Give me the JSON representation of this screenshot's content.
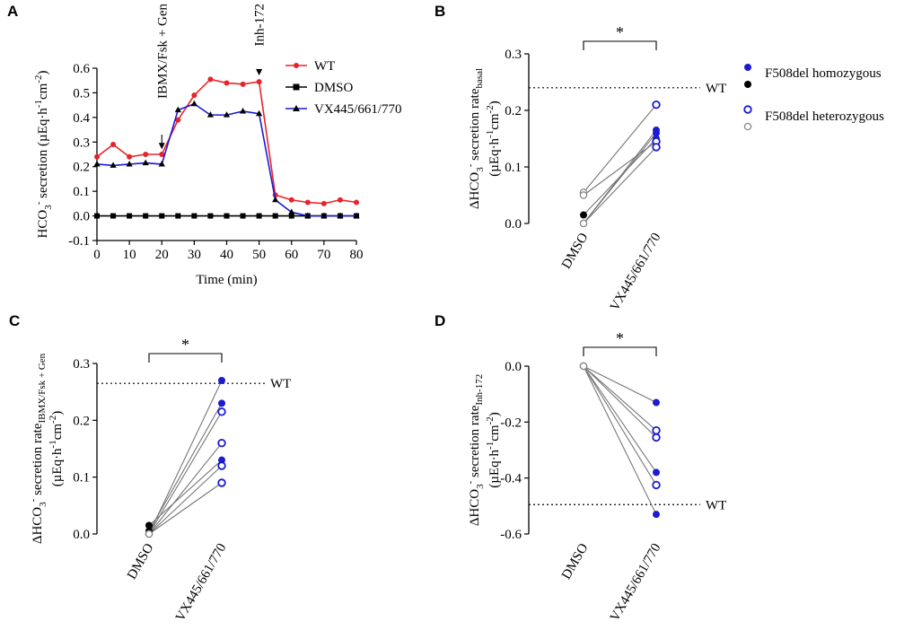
{
  "panels": [
    {
      "id": "A",
      "letter": "A",
      "chart_data": {
        "type": "line",
        "xlabel": "Time (min)",
        "ylabel_parts": [
          "HCO",
          "3",
          "-",
          " secretion (µEq·h",
          "-1",
          "cm",
          "-2",
          ")"
        ],
        "xlim": [
          0,
          80
        ],
        "ylim": [
          -0.1,
          0.6
        ],
        "xticks": [
          0,
          10,
          20,
          30,
          40,
          50,
          60,
          70,
          80
        ],
        "yticks": [
          -0.1,
          0.0,
          0.1,
          0.2,
          0.3,
          0.4,
          0.5,
          0.6
        ],
        "ytick_labels": [
          "-0.1",
          "0.0",
          "0.1",
          "0.2",
          "0.3",
          "0.4",
          "0.5",
          "0.6"
        ],
        "x": [
          0,
          5,
          10,
          15,
          20,
          25,
          30,
          35,
          40,
          45,
          50,
          55,
          60,
          65,
          70,
          75,
          80
        ],
        "series": [
          {
            "name": "WT",
            "color": "#e8242b",
            "marker": "circle",
            "values": [
              0.24,
              0.29,
              0.24,
              0.25,
              0.25,
              0.39,
              0.49,
              0.555,
              0.54,
              0.535,
              0.545,
              0.085,
              0.065,
              0.055,
              0.05,
              0.065,
              0.055
            ]
          },
          {
            "name": "DMSO",
            "color": "#000000",
            "marker": "square",
            "values": [
              0,
              0,
              0,
              0,
              0,
              0,
              0,
              0,
              0,
              0,
              0,
              0,
              0,
              0,
              0,
              0,
              0
            ]
          },
          {
            "name": "VX445/661/770",
            "color": "#1b1bd2",
            "marker": "triangle",
            "values": [
              0.21,
              0.205,
              0.21,
              0.215,
              0.21,
              0.43,
              0.455,
              0.41,
              0.41,
              0.425,
              0.415,
              0.065,
              0.015,
              0.0,
              0.0,
              0.0,
              0.0
            ]
          }
        ],
        "annotations": [
          {
            "text": "IBMX/Fsk + Gen",
            "x": 20,
            "y": 0.26
          },
          {
            "text": "Inh-172",
            "x": 50,
            "y": 0.56
          }
        ]
      }
    },
    {
      "id": "B",
      "letter": "B",
      "chart_data": {
        "type": "scatter",
        "categories": [
          "DMSO",
          "VX445/661/770"
        ],
        "ylabel_parts": [
          "ΔHCO",
          "3",
          "-",
          " secretion rate",
          "basal",
          "",
          "(µEq·h",
          "-1",
          "cm",
          "-2",
          ")"
        ],
        "ylim": [
          0,
          0.3
        ],
        "yticks": [
          0,
          0.1,
          0.2,
          0.3
        ],
        "ytick_labels": [
          "0.0",
          "0.1",
          "0.2",
          "0.3"
        ],
        "wt": 0.24,
        "wt_label": "WT",
        "sig": "*",
        "pairs": [
          {
            "dmso": 0.0,
            "vx": 0.165,
            "type": "homozygous"
          },
          {
            "dmso": 0.0,
            "vx": 0.16,
            "type": "homozygous"
          },
          {
            "dmso": 0.015,
            "vx": 0.15,
            "type": "homozygous"
          },
          {
            "dmso": 0.055,
            "vx": 0.21,
            "type": "heterozygous"
          },
          {
            "dmso": 0.05,
            "vx": 0.145,
            "type": "heterozygous"
          },
          {
            "dmso": 0.0,
            "vx": 0.135,
            "type": "heterozygous"
          }
        ]
      }
    },
    {
      "id": "C",
      "letter": "C",
      "chart_data": {
        "type": "scatter",
        "categories": [
          "DMSO",
          "VX445/661/770"
        ],
        "ylabel_parts": [
          "ΔHCO",
          "3",
          "-",
          " secretion rate",
          "IBMX/Fsk + Gen",
          "",
          "(µEq·h",
          "-1",
          "cm",
          "-2",
          ")"
        ],
        "ylim": [
          0,
          0.3
        ],
        "yticks": [
          0,
          0.1,
          0.2,
          0.3
        ],
        "ytick_labels": [
          "0.0",
          "0.1",
          "0.2",
          "0.3"
        ],
        "wt": 0.265,
        "wt_label": "WT",
        "sig": "*",
        "pairs": [
          {
            "dmso": 0.0,
            "vx": 0.27,
            "type": "homozygous"
          },
          {
            "dmso": 0.005,
            "vx": 0.23,
            "type": "homozygous"
          },
          {
            "dmso": 0.015,
            "vx": 0.13,
            "type": "homozygous"
          },
          {
            "dmso": 0.0,
            "vx": 0.215,
            "type": "heterozygous"
          },
          {
            "dmso": 0.0,
            "vx": 0.16,
            "type": "heterozygous"
          },
          {
            "dmso": 0.0,
            "vx": 0.12,
            "type": "heterozygous"
          },
          {
            "dmso": 0.0,
            "vx": 0.09,
            "type": "heterozygous"
          }
        ]
      }
    },
    {
      "id": "D",
      "letter": "D",
      "chart_data": {
        "type": "scatter",
        "categories": [
          "DMSO",
          "VX445/661/770"
        ],
        "ylabel_parts": [
          "ΔHCO",
          "3",
          "-",
          " secretion rate",
          "Inh-172",
          "",
          "(µEq·h",
          "-1",
          "cm",
          "-2",
          ")"
        ],
        "ylim": [
          -0.6,
          0.0
        ],
        "yticks": [
          0,
          -0.2,
          -0.4,
          -0.6
        ],
        "ytick_labels": [
          "0.0",
          "-0.2",
          "-0.4",
          "-0.6"
        ],
        "wt": -0.495,
        "wt_label": "WT",
        "sig": "*",
        "pairs": [
          {
            "dmso": 0.0,
            "vx": -0.13,
            "type": "homozygous"
          },
          {
            "dmso": 0.0,
            "vx": -0.38,
            "type": "homozygous"
          },
          {
            "dmso": 0.0,
            "vx": -0.53,
            "type": "homozygous"
          },
          {
            "dmso": 0.0,
            "vx": -0.23,
            "type": "heterozygous"
          },
          {
            "dmso": 0.0,
            "vx": -0.255,
            "type": "heterozygous"
          },
          {
            "dmso": 0.0,
            "vx": -0.425,
            "type": "heterozygous"
          }
        ]
      }
    }
  ],
  "legend": {
    "homozygous_label": "F508del homozygous",
    "heterozygous_label": "F508del heterozygous"
  },
  "colors": {
    "blue": "#1b1bd2",
    "black": "#000000",
    "gray": "#888888"
  }
}
